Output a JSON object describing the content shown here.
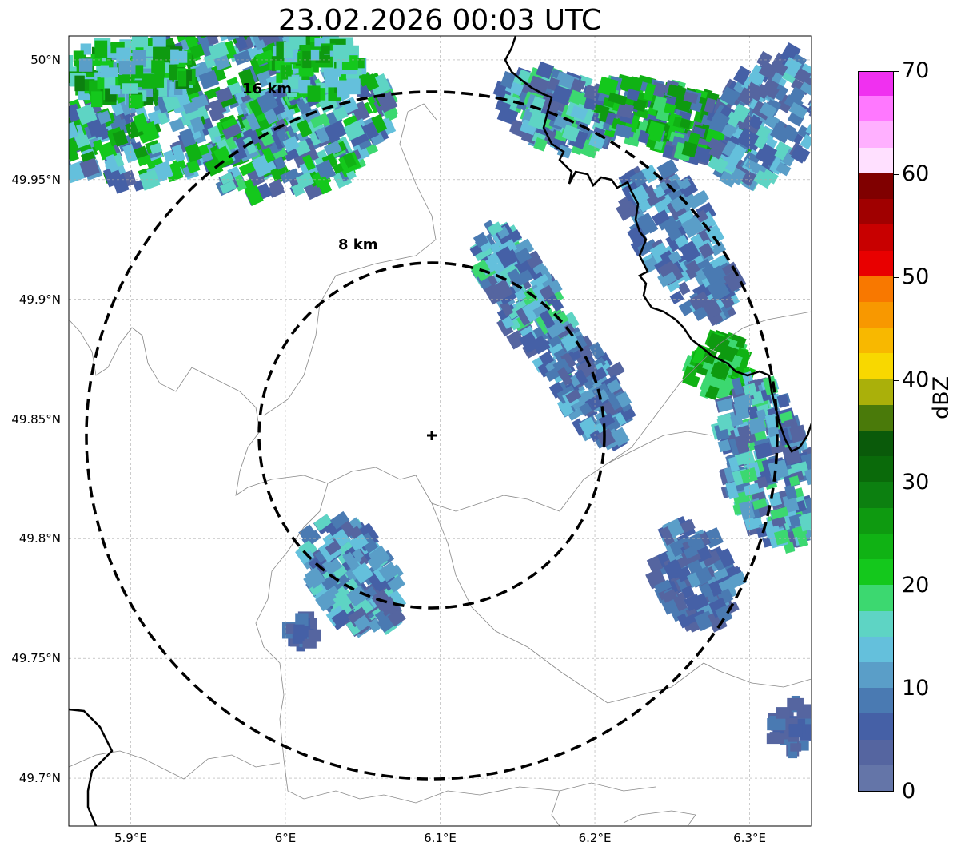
{
  "title": "23.02.2026 00:03 UTC",
  "map": {
    "lon_range": [
      5.86,
      6.34
    ],
    "lat_range": [
      49.68,
      50.01
    ],
    "lat_ticks": [
      {
        "value": 50.0,
        "label": "50°N"
      },
      {
        "value": 49.95,
        "label": "49.95°N"
      },
      {
        "value": 49.9,
        "label": "49.9°N"
      },
      {
        "value": 49.85,
        "label": "49.85°N"
      },
      {
        "value": 49.8,
        "label": "49.8°N"
      },
      {
        "value": 49.75,
        "label": "49.75°N"
      },
      {
        "value": 49.7,
        "label": "49.7°N"
      }
    ],
    "lon_ticks": [
      {
        "value": 5.9,
        "label": "5.9°E"
      },
      {
        "value": 6.0,
        "label": "6°E"
      },
      {
        "value": 6.1,
        "label": "6.1°E"
      },
      {
        "value": 6.2,
        "label": "6.2°E"
      },
      {
        "value": 6.3,
        "label": "6.3°E"
      }
    ],
    "radar_site": {
      "lon": 6.095,
      "lat": 49.843
    },
    "range_rings": [
      {
        "label": "8 km",
        "radius_km": 8
      },
      {
        "label": "16 km",
        "radius_km": 16
      }
    ],
    "gridlines": true
  },
  "colorbar": {
    "label": "dBZ",
    "min": 0,
    "max": 70,
    "ticks": [
      "0",
      "10",
      "20",
      "30",
      "40",
      "50",
      "60",
      "70"
    ],
    "colors": [
      "#6475a8",
      "#5565a0",
      "#4560a6",
      "#4a7ab2",
      "#5a9ec8",
      "#64c0dc",
      "#5ed4c4",
      "#3cd870",
      "#14c81c",
      "#10b214",
      "#0e9a10",
      "#0c8010",
      "#0a6a0a",
      "#0a5a0a",
      "#4a7a0a",
      "#aab00a",
      "#f8d800",
      "#f8b800",
      "#f89800",
      "#f87800",
      "#e80000",
      "#c80000",
      "#a00000",
      "#800000",
      "#ffe0ff",
      "#ffb0ff",
      "#ff78ff",
      "#f030f0"
    ]
  }
}
